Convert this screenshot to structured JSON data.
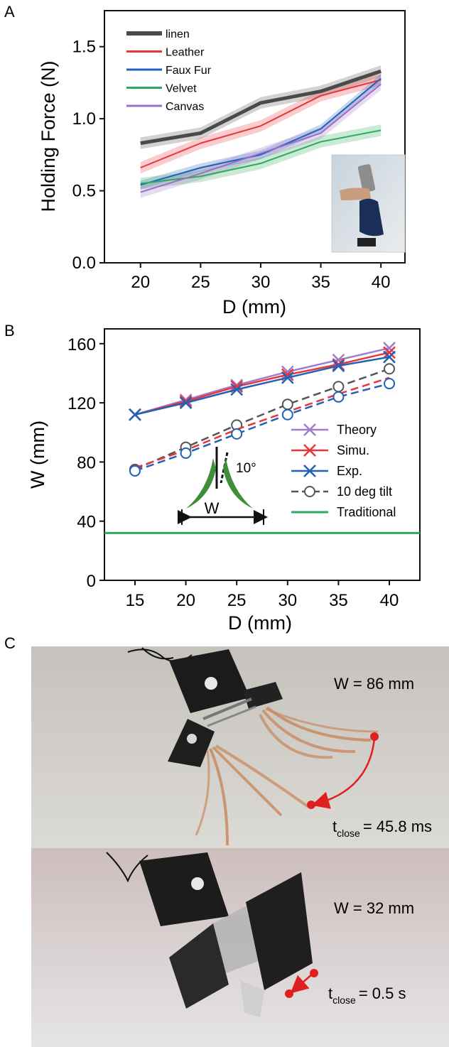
{
  "panels": {
    "a": "A",
    "b": "B",
    "c": "C"
  },
  "colors": {
    "linen": "#4a4a4a",
    "leather": "#e8363a",
    "faux_fur": "#2161b8",
    "velvet": "#2eaa5c",
    "canvas": "#9a6fc6",
    "theory": "#a27ccb",
    "simu": "#e8363a",
    "exp": "#2161b8",
    "tilt": "#444444",
    "traditional": "#2eaa5c"
  },
  "chart_data": [
    {
      "type": "line",
      "x": [
        20,
        25,
        30,
        35,
        40
      ],
      "xlabel": "D (mm)",
      "ylabel": "Holding Force (N)",
      "xlim": [
        17,
        42
      ],
      "ylim": [
        0,
        1.75
      ],
      "xticks": [
        "20",
        "25",
        "30",
        "35",
        "40"
      ],
      "yticks": [
        "0.0",
        "0.5",
        "1.0",
        "1.5"
      ],
      "legend_position": "top-left",
      "series": [
        {
          "name": "linen",
          "color": "#4a4a4a",
          "values": [
            0.83,
            0.9,
            1.11,
            1.19,
            1.33
          ],
          "band": 0.04,
          "width": 5
        },
        {
          "name": "Leather",
          "color": "#e8363a",
          "values": [
            0.66,
            0.83,
            0.95,
            1.16,
            1.27
          ],
          "band": 0.04,
          "width": 2
        },
        {
          "name": "Faux Fur",
          "color": "#2161b8",
          "values": [
            0.54,
            0.66,
            0.75,
            0.93,
            1.28
          ],
          "band": 0.03,
          "width": 2
        },
        {
          "name": "Velvet",
          "color": "#2eaa5c",
          "values": [
            0.55,
            0.6,
            0.69,
            0.84,
            0.92
          ],
          "band": 0.04,
          "width": 2
        },
        {
          "name": "Canvas",
          "color": "#9a6fc6",
          "values": [
            0.49,
            0.62,
            0.76,
            0.9,
            1.24
          ],
          "band": 0.04,
          "width": 2
        }
      ]
    },
    {
      "type": "line",
      "x": [
        15,
        20,
        25,
        30,
        35,
        40
      ],
      "xlabel": "D (mm)",
      "ylabel": "W (mm)",
      "xlim": [
        12,
        43
      ],
      "ylim": [
        0,
        170
      ],
      "xticks": [
        "15",
        "20",
        "25",
        "30",
        "35",
        "40"
      ],
      "yticks": [
        "0",
        "40",
        "80",
        "120",
        "160"
      ],
      "legend_position": "right",
      "series": [
        {
          "name": "Theory",
          "color": "#a27ccb",
          "marker": "x",
          "dash": false,
          "values": [
            112,
            122,
            132,
            141,
            149,
            157
          ]
        },
        {
          "name": "Simu.",
          "color": "#e8363a",
          "marker": "x",
          "dash": false,
          "values": [
            112,
            121,
            131,
            139,
            146,
            154
          ]
        },
        {
          "name": "Exp.",
          "color": "#2161b8",
          "marker": "x",
          "dash": false,
          "values": [
            112,
            120,
            129,
            137,
            145,
            151
          ]
        },
        {
          "name": "10 deg tilt",
          "color": "#555555",
          "marker": "o",
          "dash": true,
          "values": [
            75,
            90,
            105,
            119,
            131,
            143
          ]
        },
        {
          "name": "",
          "color": "#e8363a",
          "marker": "none",
          "dash": true,
          "values": [
            76,
            88,
            102,
            114,
            126,
            137
          ]
        },
        {
          "name": "",
          "color": "#2161b8",
          "marker": "o",
          "dash": true,
          "values": [
            74,
            86,
            99,
            112,
            124,
            133
          ]
        },
        {
          "name": "Traditional",
          "color": "#2eaa5c",
          "marker": "none",
          "dash": false,
          "values": [
            32,
            32,
            32,
            32,
            32,
            32
          ]
        }
      ],
      "inset": {
        "angle_label": "10°",
        "width_label": "W"
      }
    }
  ],
  "photos": {
    "top": {
      "w_label": "W = 86 mm",
      "t_main": "t",
      "t_sub": "close",
      "t_value": "= 45.8 ms"
    },
    "bottom": {
      "w_label": "W = 32 mm",
      "t_main": "t",
      "t_sub": "close",
      "t_value": "= 0.5 s"
    }
  }
}
